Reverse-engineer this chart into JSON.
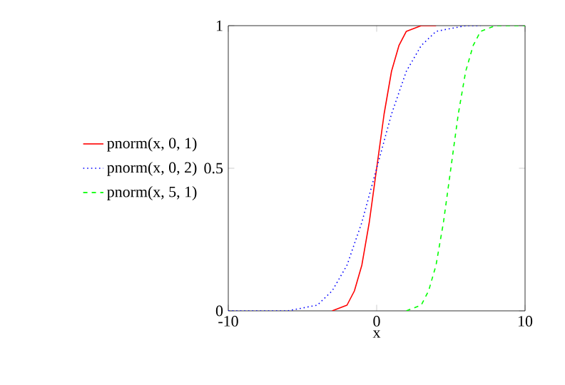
{
  "chart_data": {
    "type": "line",
    "xlabel": "x",
    "xlim": [
      -10,
      10
    ],
    "ylim": [
      0,
      1
    ],
    "xticks": [
      -10,
      0,
      10
    ],
    "yticks": [
      0,
      0.5,
      1
    ],
    "grid": false,
    "legend": "left",
    "marker": "none",
    "series": [
      {
        "name": "pnorm(x, 0, 1)",
        "color": "#ff0000",
        "line_style": "solid",
        "x": [
          -3,
          -2.5,
          -2,
          -1.5,
          -1,
          -0.5,
          0,
          0.5,
          1,
          1.5,
          2,
          2.5,
          3,
          4
        ],
        "values": [
          0,
          0.01,
          0.02,
          0.07,
          0.16,
          0.31,
          0.5,
          0.69,
          0.84,
          0.93,
          0.98,
          0.99,
          1,
          1
        ]
      },
      {
        "name": "pnorm(x, 0, 2)",
        "color": "#0000ff",
        "line_style": "dotted",
        "x": [
          -10,
          -7,
          -6,
          -5,
          -4,
          -3,
          -2,
          -1,
          0,
          1,
          2,
          3,
          4,
          5,
          6,
          7
        ],
        "values": [
          0,
          0,
          0,
          0.01,
          0.02,
          0.07,
          0.16,
          0.31,
          0.5,
          0.69,
          0.84,
          0.93,
          0.98,
          0.99,
          1,
          1
        ]
      },
      {
        "name": "pnorm(x, 5, 1)",
        "color": "#00ff00",
        "line_style": "dashed",
        "x": [
          2,
          2.5,
          3,
          3.5,
          4,
          4.5,
          5,
          5.5,
          6,
          6.5,
          7,
          7.5,
          8,
          9,
          10
        ],
        "values": [
          0,
          0.01,
          0.02,
          0.07,
          0.16,
          0.31,
          0.5,
          0.69,
          0.84,
          0.93,
          0.98,
          0.99,
          1,
          1,
          1
        ]
      }
    ]
  }
}
